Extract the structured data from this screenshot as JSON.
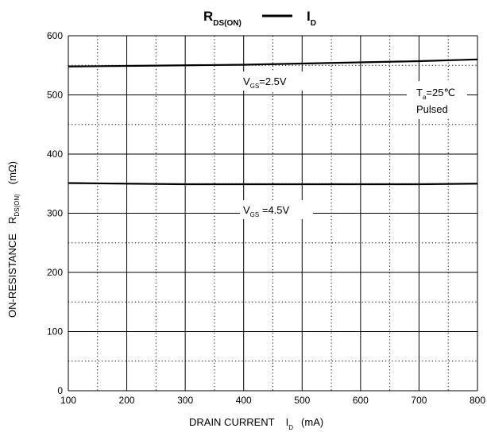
{
  "chart_data": {
    "type": "line",
    "title": {
      "left_main": "R",
      "left_sub": "DS(ON)",
      "right_main": "I",
      "right_sub": "D"
    },
    "xlabel": {
      "main": "DRAIN CURRENT",
      "symbol": "I",
      "symbol_sub": "D",
      "unit": "(mA)"
    },
    "ylabel": {
      "main": "ON-RESISTANCE",
      "symbol": "R",
      "symbol_sub": "DS(ON)",
      "unit": "(mΩ)"
    },
    "xlim": [
      100,
      800
    ],
    "ylim": [
      0,
      600
    ],
    "x_ticks": [
      100,
      200,
      300,
      400,
      500,
      600,
      700,
      800
    ],
    "y_ticks": [
      0,
      100,
      200,
      300,
      400,
      500,
      600
    ],
    "grid": {
      "solid_x": [
        100,
        200,
        300,
        400,
        500,
        600,
        700,
        800
      ],
      "dotted_x": [
        150,
        250,
        350,
        450,
        550,
        650,
        750
      ],
      "solid_y": [
        0,
        100,
        200,
        300,
        400,
        500,
        600
      ],
      "dotted_y": [
        50,
        150,
        250,
        350,
        450,
        550
      ]
    },
    "series": [
      {
        "label_main": "V",
        "label_sub": "GS",
        "label_value": "=2.5V",
        "x": [
          100,
          200,
          300,
          400,
          500,
          600,
          700,
          800
        ],
        "y": [
          548,
          549,
          550,
          551,
          553,
          555,
          557,
          560
        ]
      },
      {
        "label_main": "V",
        "label_sub": "GS",
        "label_value": " =4.5V",
        "x": [
          100,
          200,
          300,
          400,
          500,
          600,
          700,
          800
        ],
        "y": [
          351,
          350,
          349,
          349,
          349,
          349,
          349,
          350
        ]
      }
    ],
    "annotation": {
      "ta_main": "T",
      "ta_sub": "a",
      "ta_value": "=25℃",
      "pulsed": "Pulsed"
    }
  }
}
